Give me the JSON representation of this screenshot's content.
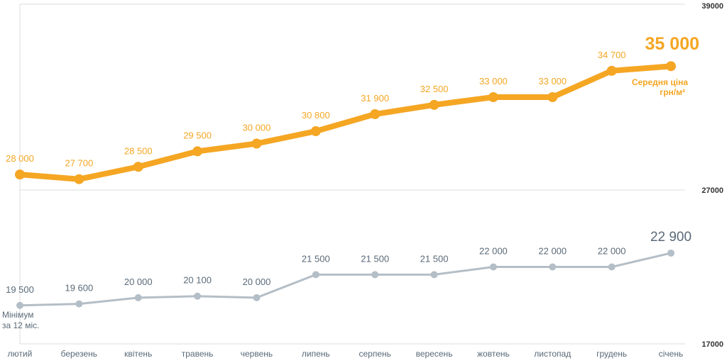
{
  "chart_data": {
    "type": "line",
    "categories": [
      "лютий",
      "березень",
      "квітень",
      "травень",
      "червень",
      "липень",
      "серпень",
      "вересень",
      "жовтень",
      "листопад",
      "грудень",
      "січень"
    ],
    "series": [
      {
        "values": [
          28000,
          27700,
          28500,
          29500,
          30000,
          30800,
          31900,
          32500,
          33000,
          33000,
          34700,
          35000
        ],
        "point_labels": [
          "28 000",
          "27 700",
          "28 500",
          "29 500",
          "30 000",
          "30 800",
          "31 900",
          "32 500",
          "33 000",
          "33 000",
          "34 700",
          "35 000"
        ],
        "note": "Середня ціна грн/м²",
        "color": "#f5a623",
        "ylim": [
          27000,
          39000
        ]
      },
      {
        "values": [
          19500,
          19600,
          20000,
          20100,
          20000,
          21500,
          21500,
          21500,
          22000,
          22000,
          22000,
          22900
        ],
        "point_labels": [
          "19 500",
          "19 600",
          "20 000",
          "20 100",
          "20 000",
          "21 500",
          "21 500",
          "21 500",
          "22 000",
          "22 000",
          "22 000",
          "22 900"
        ],
        "note": "Мінімум за 12 міс.",
        "color": "#b4bec7",
        "ylim": [
          17000,
          27000
        ]
      }
    ],
    "right_axis_ticks": [
      "39000",
      "27000",
      "17000"
    ],
    "grid": true
  }
}
